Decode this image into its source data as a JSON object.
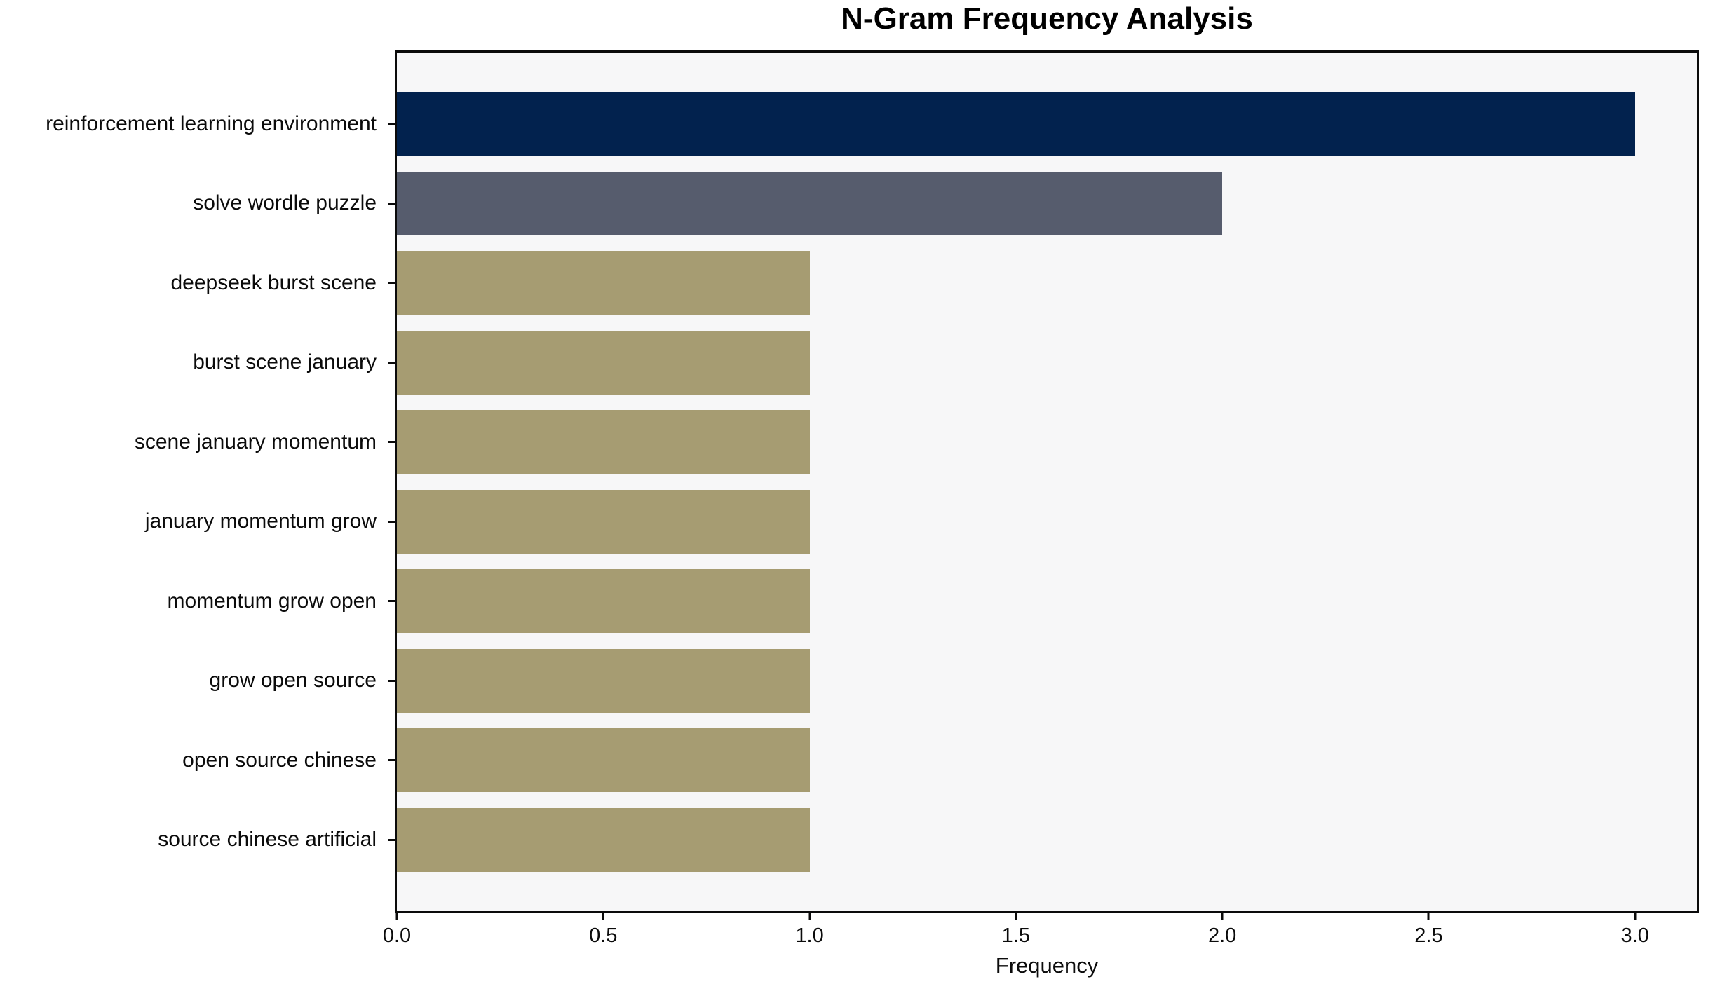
{
  "figure": {
    "background": "#ffffff",
    "plot_background": "#f7f7f8",
    "frame_color": "#0b0b0b"
  },
  "chart_data": {
    "type": "bar",
    "orientation": "horizontal",
    "title": "N-Gram Frequency Analysis",
    "xlabel": "Frequency",
    "ylabel": "",
    "categories": [
      "reinforcement learning environment",
      "solve wordle puzzle",
      "deepseek burst scene",
      "burst scene january",
      "scene january momentum",
      "january momentum grow",
      "momentum grow open",
      "grow open source",
      "open source chinese",
      "source chinese artificial"
    ],
    "values": [
      3,
      2,
      1,
      1,
      1,
      1,
      1,
      1,
      1,
      1
    ],
    "bar_colors": [
      "#02224e",
      "#565c6d",
      "#a69c72",
      "#a69c72",
      "#a69c72",
      "#a69c72",
      "#a69c72",
      "#a69c72",
      "#a69c72",
      "#a69c72"
    ],
    "xlim": [
      0,
      3.15
    ],
    "xticks": [
      0,
      0.5,
      1,
      1.5,
      2,
      2.5,
      3
    ],
    "xtick_labels": [
      "0.0",
      "0.5",
      "1.0",
      "1.5",
      "2.0",
      "2.5",
      "3.0"
    ],
    "grid": false,
    "legend": "none",
    "bar_relative_height": 0.8
  }
}
